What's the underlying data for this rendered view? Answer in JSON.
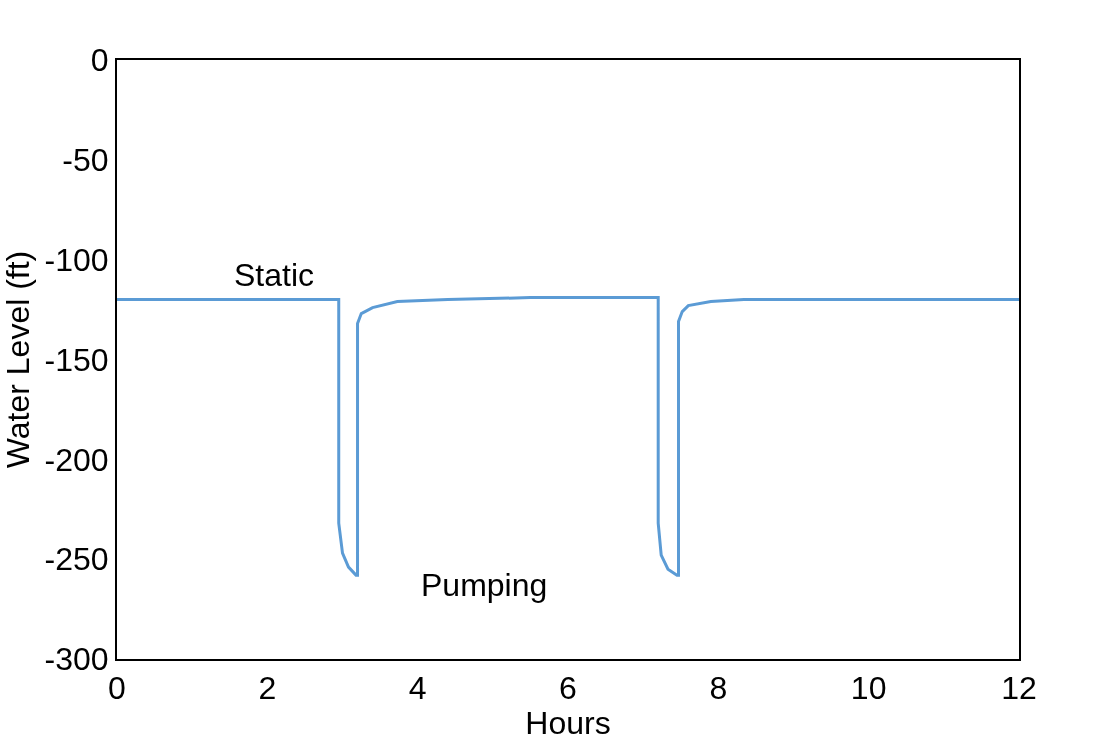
{
  "chart_data": {
    "type": "line",
    "xlabel": "Hours",
    "ylabel": "Water Level (ft)",
    "x": [
      0,
      1,
      2,
      2.95,
      2.95,
      3.0,
      3.08,
      3.18,
      3.2,
      3.2,
      3.25,
      3.4,
      3.73,
      4.4,
      5.5,
      7.2,
      7.2,
      7.24,
      7.33,
      7.45,
      7.47,
      7.47,
      7.52,
      7.6,
      7.9,
      8.34,
      9.5,
      12
    ],
    "series": [
      {
        "color": "#5b9bd5",
        "values": [
          -120,
          -120,
          -120,
          -120,
          -232,
          -247,
          -254,
          -258,
          -258,
          -132,
          -127,
          -124,
          -121,
          -120,
          -119,
          -119,
          -232,
          -248,
          -255,
          -258,
          -258,
          -131,
          -126,
          -123,
          -121,
          -120,
          -120,
          -120
        ]
      }
    ],
    "xlim": [
      0,
      12
    ],
    "xticks": [
      0,
      2,
      4,
      6,
      8,
      10,
      12
    ],
    "ylim": [
      -300,
      0
    ],
    "yticks": [
      -300,
      -250,
      -200,
      -150,
      -100,
      -50,
      0
    ],
    "marker": "none",
    "line_style": "solid",
    "annotations": [
      "Static",
      "Pumping"
    ]
  }
}
